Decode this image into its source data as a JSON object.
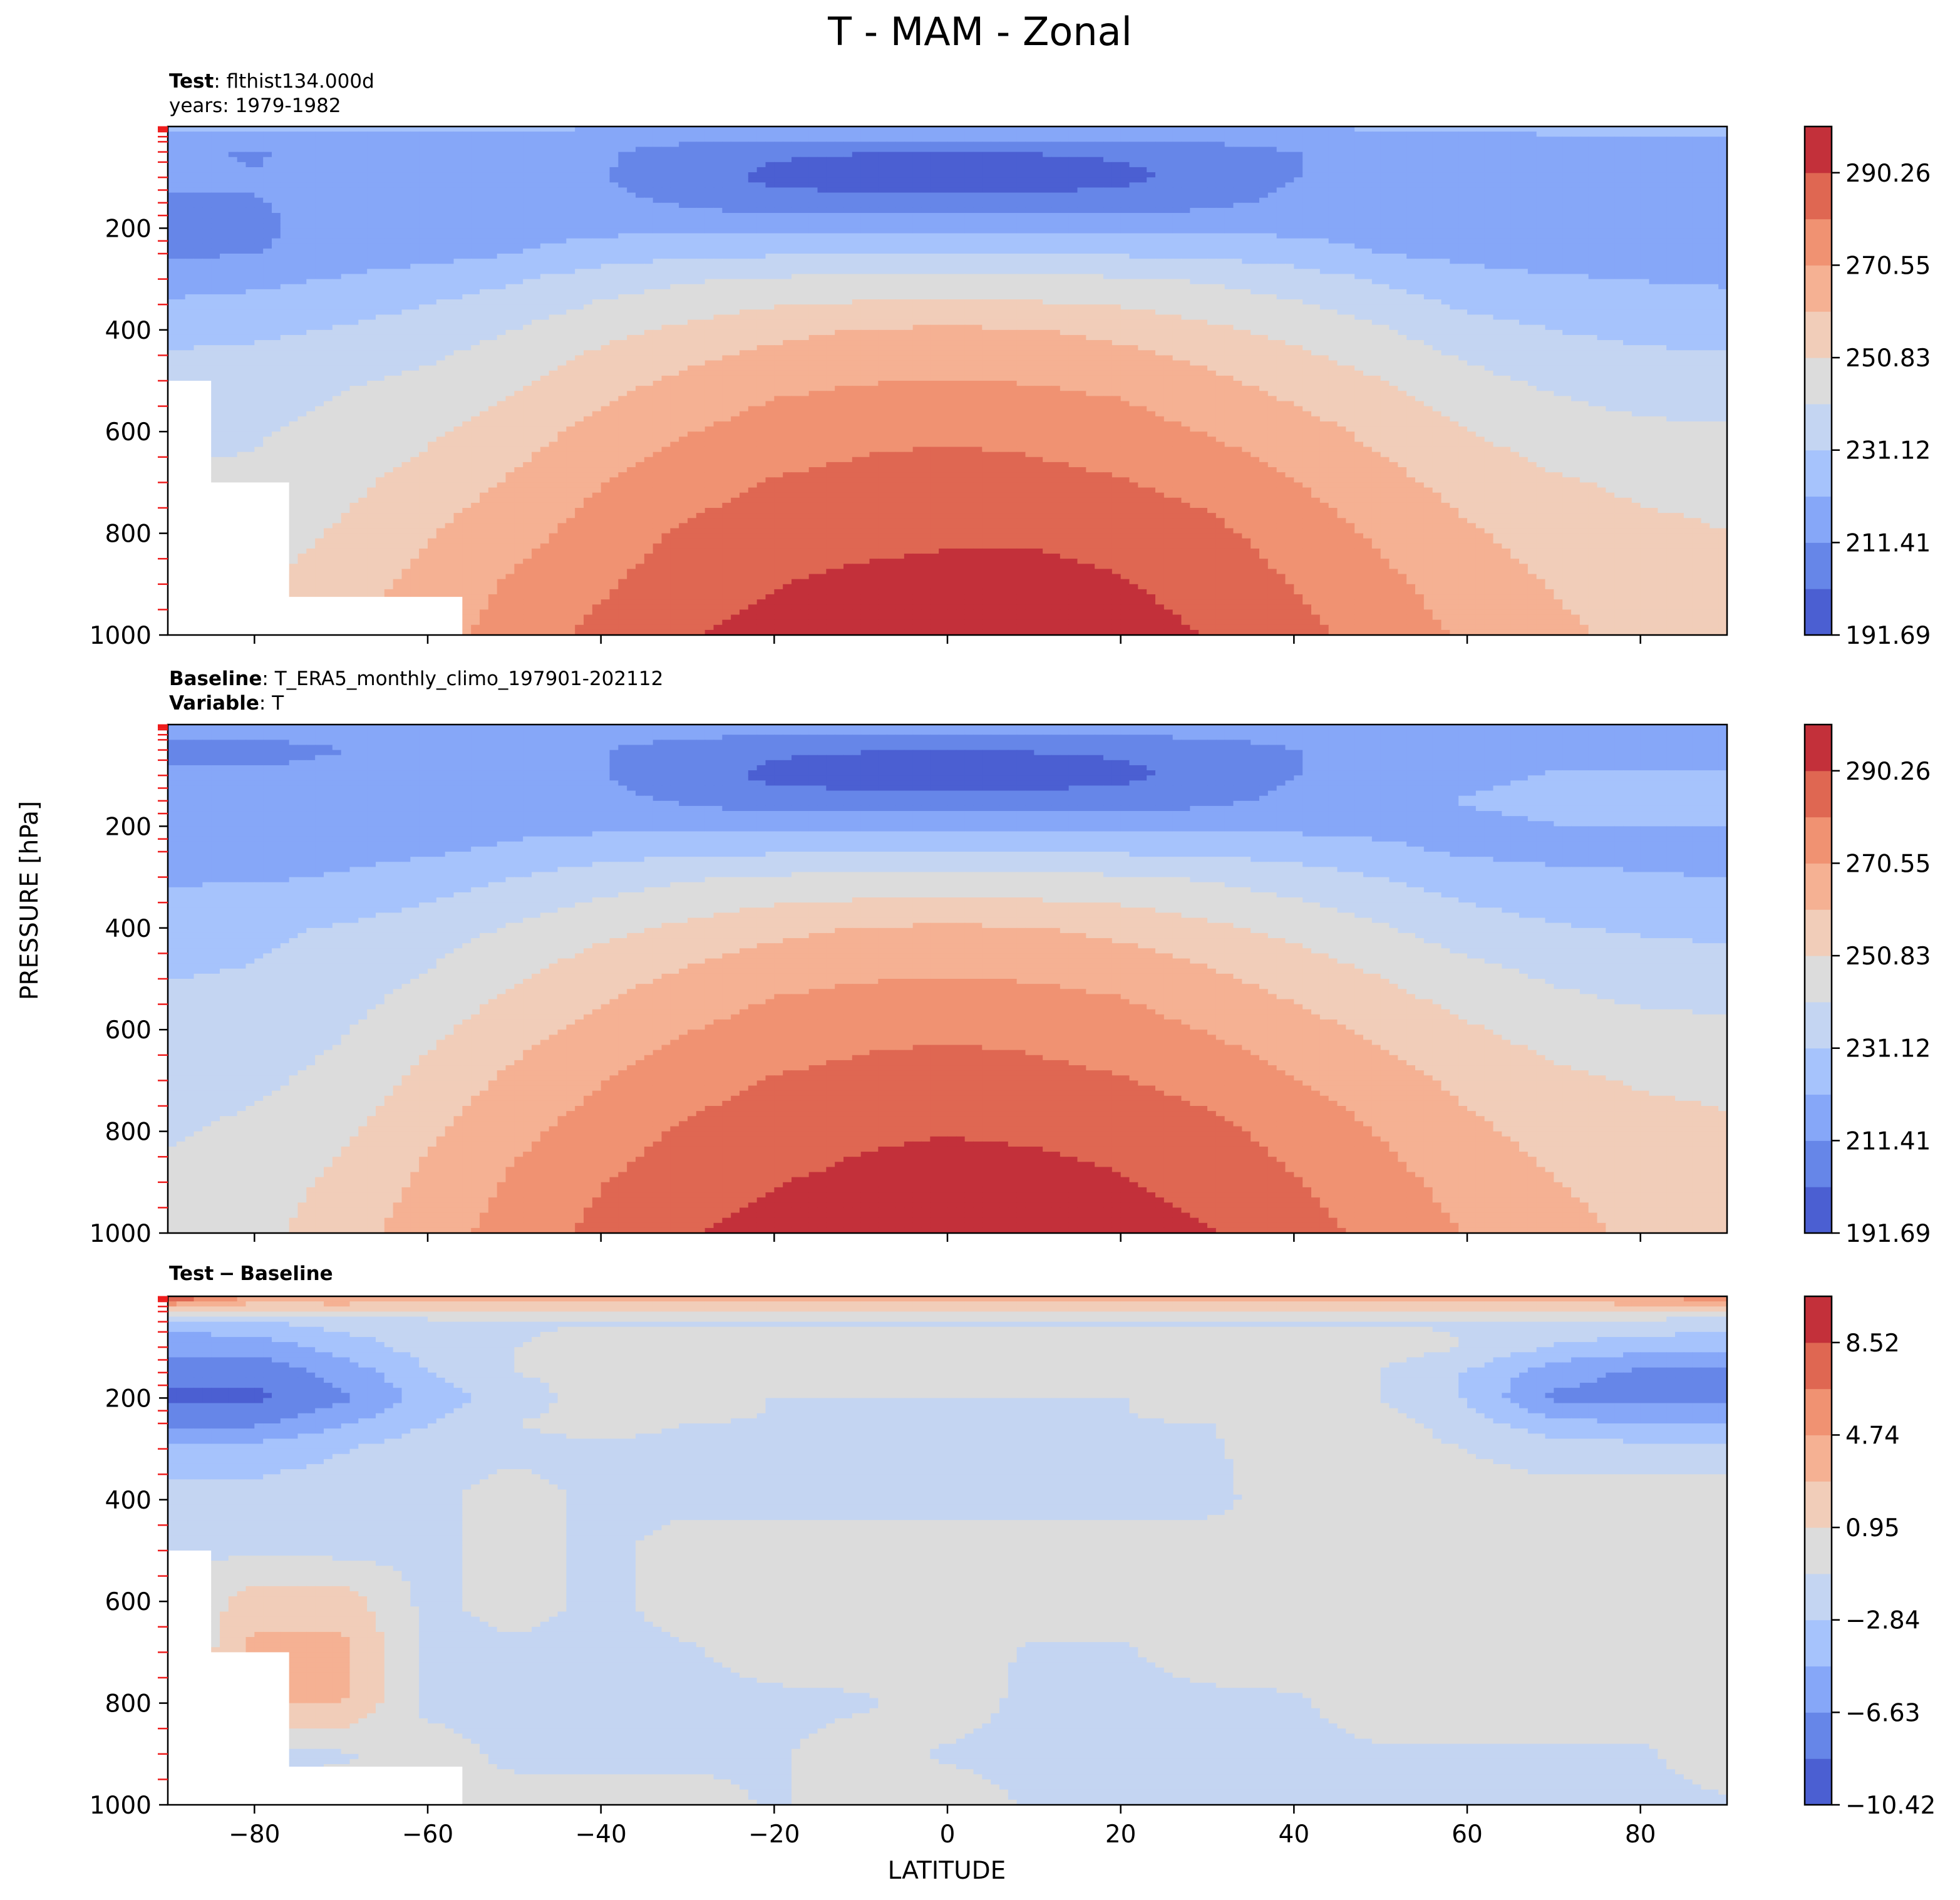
{
  "figure_title": "T - MAM - Zonal",
  "y_axis_label": "PRESSURE [hPa]",
  "x_axis_label": "LATITUDE",
  "colors": {
    "coolwarm": [
      "#4b5fd2",
      "#6686e8",
      "#86a7f8",
      "#a6c3fc",
      "#c4d5f2",
      "#dcdcdc",
      "#f1cdb9",
      "#f5b193",
      "#f09272",
      "#df6752",
      "#c3303a"
    ],
    "tick_marks": "#ee1c1c"
  },
  "panels": [
    {
      "name": "test",
      "title_lines": [
        {
          "label": "Test",
          "sep": ": ",
          "value": "flthist134.000d"
        },
        {
          "label": "",
          "sep": "",
          "value": "years: 1979-1982"
        }
      ],
      "colorbar_ticks": [
        "290.26",
        "270.55",
        "250.83",
        "231.12",
        "211.41",
        "191.69"
      ]
    },
    {
      "name": "baseline",
      "title_lines": [
        {
          "label": "Baseline",
          "sep": ": ",
          "value": "T_ERA5_monthly_climo_197901-202112"
        },
        {
          "label": "Variable",
          "sep": ": ",
          "value": "T"
        }
      ],
      "colorbar_ticks": [
        "290.26",
        "270.55",
        "250.83",
        "231.12",
        "211.41",
        "191.69"
      ]
    },
    {
      "name": "difference",
      "title_lines": [
        {
          "label": "Test",
          "sep": "",
          "value": ""
        }
      ],
      "title_dash": "−",
      "title_second": "Baseline",
      "colorbar_ticks": [
        "8.52",
        "4.74",
        "0.95",
        "−2.84",
        "−6.63",
        "−10.42"
      ]
    }
  ],
  "chart_data": [
    {
      "type": "heatmap",
      "title": "Test: flthist134.000d, years: 1979-1982",
      "xlabel": "LATITUDE",
      "ylabel": "PRESSURE [hPa]",
      "xlim": [
        -90,
        90
      ],
      "ylim": [
        1000,
        0
      ],
      "x_ticks": [
        -80,
        -60,
        -40,
        -20,
        0,
        20,
        40,
        60,
        80
      ],
      "y_ticks": [
        200,
        400,
        600,
        800,
        1000
      ],
      "levels": [
        191.69,
        201.55,
        211.41,
        221.26,
        231.12,
        240.98,
        250.83,
        260.69,
        270.55,
        280.4,
        290.26,
        300.12
      ],
      "colorbar_labels": [
        191.69,
        211.41,
        231.12,
        250.83,
        270.55,
        290.26
      ],
      "colormap": "coolwarm",
      "latitudes": [
        -90,
        -80,
        -70,
        -60,
        -50,
        -40,
        -30,
        -20,
        -10,
        0,
        10,
        20,
        30,
        40,
        50,
        60,
        70,
        80,
        90
      ],
      "pressures": [
        0,
        50,
        100,
        150,
        200,
        250,
        300,
        400,
        500,
        600,
        700,
        800,
        900,
        1000
      ],
      "values": [
        [
          224,
          223,
          223,
          222,
          222,
          222,
          222,
          222,
          222,
          222,
          222,
          222,
          222,
          222,
          222,
          222,
          223,
          223,
          224
        ],
        [
          215,
          210,
          217,
          218,
          218,
          213,
          206,
          203,
          202,
          202,
          202,
          203,
          206,
          211,
          216,
          217,
          218,
          218,
          218
        ],
        [
          213,
          212,
          215,
          217,
          217,
          212,
          206,
          199,
          196,
          196,
          196,
          199,
          205,
          211,
          216,
          217,
          218,
          218,
          218
        ],
        [
          210,
          211,
          214,
          217,
          217,
          214,
          210,
          206,
          205,
          205,
          205,
          206,
          209,
          214,
          216,
          217,
          217,
          217,
          217
        ],
        [
          210,
          210,
          214,
          217,
          218,
          219,
          219,
          218,
          218,
          218,
          218,
          218,
          219,
          219,
          218,
          217,
          217,
          217,
          217
        ],
        [
          210,
          211,
          216,
          218,
          221,
          226,
          229,
          230,
          230,
          230,
          230,
          230,
          229,
          226,
          221,
          219,
          218,
          218,
          218
        ],
        [
          217,
          219,
          222,
          226,
          230,
          236,
          240,
          242,
          243,
          243,
          243,
          242,
          240,
          236,
          230,
          224,
          222,
          221,
          220
        ],
        [
          228,
          229,
          232,
          236,
          241,
          248,
          253,
          258,
          261,
          262,
          261,
          258,
          253,
          248,
          242,
          235,
          231,
          229,
          228
        ],
        [
          236,
          237,
          240,
          243,
          249,
          257,
          263,
          268,
          270,
          271,
          270,
          268,
          263,
          257,
          251,
          244,
          239,
          236,
          235
        ],
        [
          238,
          240,
          244,
          249,
          256,
          264,
          270,
          275,
          278,
          279,
          278,
          275,
          270,
          265,
          258,
          251,
          246,
          243,
          242
        ],
        [
          242,
          243,
          248,
          255,
          262,
          270,
          276,
          281,
          283,
          284,
          283,
          281,
          277,
          271,
          264,
          257,
          252,
          249,
          248
        ],
        [
          245,
          246,
          252,
          260,
          267,
          275,
          282,
          286,
          288,
          289,
          289,
          287,
          283,
          276,
          269,
          262,
          256,
          253,
          251
        ],
        [
          247,
          249,
          256,
          264,
          272,
          279,
          286,
          290,
          292,
          293,
          293,
          291,
          287,
          280,
          273,
          266,
          260,
          256,
          254
        ],
        [
          249,
          251,
          258,
          266,
          275,
          283,
          290,
          293,
          295,
          296,
          296,
          294,
          290,
          284,
          276,
          269,
          263,
          258,
          256
        ]
      ],
      "masked_region": [
        {
          "lat_max": -85,
          "p_min": 500
        },
        {
          "lat_max": -76,
          "p_min": 700
        },
        {
          "lat_max": -56,
          "p_min": 925
        }
      ]
    },
    {
      "type": "heatmap",
      "title": "Baseline: T_ERA5_monthly_climo_197901-202112, Variable: T",
      "xlabel": "LATITUDE",
      "ylabel": "PRESSURE [hPa]",
      "xlim": [
        -90,
        90
      ],
      "ylim": [
        1000,
        0
      ],
      "x_ticks": [
        -80,
        -60,
        -40,
        -20,
        0,
        20,
        40,
        60,
        80
      ],
      "y_ticks": [
        200,
        400,
        600,
        800,
        1000
      ],
      "levels": [
        191.69,
        201.55,
        211.41,
        221.26,
        231.12,
        240.98,
        250.83,
        260.69,
        270.55,
        280.4,
        290.26,
        300.12
      ],
      "colorbar_labels": [
        191.69,
        211.41,
        231.12,
        250.83,
        270.55,
        290.26
      ],
      "colormap": "coolwarm",
      "latitudes": [
        -90,
        -80,
        -70,
        -60,
        -50,
        -40,
        -30,
        -20,
        -10,
        0,
        10,
        20,
        30,
        40,
        50,
        60,
        70,
        80,
        90
      ],
      "pressures": [
        0,
        50,
        100,
        150,
        200,
        250,
        300,
        400,
        500,
        600,
        700,
        800,
        900,
        1000
      ],
      "values": [
        [
          215,
          216,
          218,
          218,
          218,
          218,
          218,
          218,
          218,
          218,
          218,
          218,
          218,
          218,
          218,
          218,
          218,
          218,
          218
        ],
        [
          208,
          208,
          211,
          217,
          218,
          212,
          206,
          203,
          202,
          202,
          202,
          203,
          206,
          211,
          215,
          217,
          218,
          218,
          218
        ],
        [
          213,
          213,
          215,
          217,
          217,
          212,
          206,
          199,
          197,
          197,
          197,
          199,
          205,
          211,
          216,
          219,
          222,
          222,
          222
        ],
        [
          214,
          214,
          216,
          217,
          217,
          214,
          210,
          206,
          205,
          205,
          205,
          206,
          209,
          214,
          217,
          222,
          224,
          224,
          224
        ],
        [
          216,
          216,
          217,
          218,
          219,
          219,
          219,
          218,
          218,
          218,
          218,
          218,
          219,
          219,
          219,
          219,
          221,
          221,
          221
        ],
        [
          217,
          217,
          218,
          220,
          223,
          227,
          229,
          230,
          230,
          230,
          230,
          230,
          229,
          227,
          223,
          220,
          219,
          219,
          219
        ],
        [
          220,
          220,
          222,
          226,
          231,
          236,
          240,
          242,
          243,
          243,
          243,
          242,
          240,
          236,
          231,
          226,
          223,
          222,
          221
        ],
        [
          228,
          229,
          232,
          236,
          242,
          248,
          253,
          258,
          261,
          262,
          261,
          258,
          253,
          248,
          242,
          236,
          232,
          230,
          229
        ],
        [
          231,
          232,
          236,
          242,
          250,
          257,
          263,
          268,
          270,
          271,
          270,
          268,
          263,
          257,
          251,
          245,
          240,
          237,
          236
        ],
        [
          234,
          236,
          240,
          248,
          257,
          264,
          270,
          275,
          278,
          279,
          278,
          275,
          270,
          265,
          258,
          252,
          247,
          244,
          243
        ],
        [
          237,
          239,
          244,
          254,
          263,
          270,
          276,
          281,
          283,
          284,
          283,
          281,
          277,
          271,
          265,
          258,
          253,
          250,
          249
        ],
        [
          240,
          243,
          249,
          259,
          268,
          275,
          282,
          286,
          289,
          290,
          289,
          287,
          283,
          277,
          270,
          263,
          257,
          254,
          252
        ],
        [
          243,
          246,
          253,
          263,
          272,
          280,
          286,
          290,
          292,
          293,
          293,
          291,
          287,
          281,
          274,
          267,
          261,
          257,
          255
        ],
        [
          245,
          248,
          256,
          266,
          275,
          283,
          290,
          293,
          295,
          296,
          296,
          294,
          291,
          285,
          277,
          270,
          264,
          259,
          257
        ]
      ]
    },
    {
      "type": "heatmap",
      "title": "Test − Baseline",
      "xlabel": "LATITUDE",
      "ylabel": "PRESSURE [hPa]",
      "xlim": [
        -90,
        90
      ],
      "ylim": [
        1000,
        0
      ],
      "x_ticks": [
        -80,
        -60,
        -40,
        -20,
        0,
        20,
        40,
        60,
        80
      ],
      "y_ticks": [
        200,
        400,
        600,
        800,
        1000
      ],
      "levels": [
        -10.42,
        -8.52,
        -6.63,
        -4.74,
        -2.84,
        -0.95,
        0.95,
        2.84,
        4.74,
        6.63,
        8.52,
        10.42
      ],
      "colorbar_labels": [
        -10.42,
        -6.63,
        -2.84,
        0.95,
        4.74,
        8.52
      ],
      "colormap": "coolwarm",
      "latitudes": [
        -90,
        -80,
        -70,
        -60,
        -50,
        -40,
        -30,
        -20,
        -10,
        0,
        10,
        20,
        30,
        40,
        50,
        60,
        70,
        80,
        90
      ],
      "pressures": [
        0,
        50,
        100,
        150,
        200,
        250,
        300,
        400,
        500,
        600,
        700,
        800,
        900,
        1000
      ],
      "values": [
        [
          9,
          5,
          5,
          4,
          4,
          4,
          4,
          4,
          4,
          4,
          4,
          4,
          4,
          4,
          4,
          4,
          4,
          5,
          6
        ],
        [
          -4,
          -3,
          -2,
          -1.5,
          -1.2,
          -1.1,
          -1.1,
          -1.1,
          -1.1,
          -1.2,
          -1.2,
          -1.1,
          -1.1,
          -1.1,
          -1.1,
          -1.1,
          -1.2,
          -1.5,
          -2
        ],
        [
          -6,
          -6,
          -4,
          -2,
          -1,
          0,
          0,
          0,
          0,
          0,
          0,
          0,
          0,
          0,
          0,
          -1,
          -3,
          -4,
          -4
        ],
        [
          -8,
          -8,
          -6,
          -3,
          -1,
          0,
          0,
          0,
          0,
          0,
          0,
          0,
          0,
          0,
          -1,
          -3,
          -6,
          -7,
          -7
        ],
        [
          -9,
          -9,
          -7,
          -4,
          -2,
          0,
          0,
          -1,
          -1,
          -1,
          -1,
          -1,
          0,
          0,
          -1,
          -3,
          -7,
          -7,
          -7
        ],
        [
          -7,
          -7,
          -5,
          -3,
          -1,
          0,
          -1,
          -1,
          -1,
          -1,
          -1,
          -1,
          -1,
          0,
          0,
          -2,
          -4,
          -5,
          -5
        ],
        [
          -4,
          -4,
          -3,
          -1.5,
          -1.5,
          -1.5,
          -1.5,
          -1.5,
          -1.5,
          -1.5,
          -1.5,
          -1.5,
          -1.2,
          0,
          0,
          -1,
          -2,
          -2,
          -2
        ],
        [
          -2,
          -2,
          -1.5,
          -1.5,
          0,
          -1.5,
          -1.5,
          -1.5,
          -1.5,
          -1.5,
          -1.5,
          -1.5,
          -1.5,
          0,
          0,
          0,
          0,
          0,
          0
        ],
        [
          -1.5,
          -1.2,
          -1.5,
          -1.5,
          0,
          -1.5,
          0,
          0,
          0,
          0,
          0,
          0,
          0,
          0,
          0,
          0,
          0,
          0,
          0
        ],
        [
          -1.5,
          2,
          2,
          -1.5,
          0,
          -1.5,
          0,
          0,
          0,
          0,
          0,
          0,
          0,
          0,
          0,
          0,
          0,
          0,
          0
        ],
        [
          -2,
          3.5,
          3.5,
          -1.5,
          -1.5,
          -1.5,
          -1.2,
          0,
          0,
          0,
          -1.2,
          -1.2,
          0,
          0,
          0,
          0,
          0,
          0,
          0
        ],
        [
          -2,
          3,
          3,
          -1.5,
          -1.5,
          -1.5,
          -1.5,
          -1.5,
          -1.2,
          0,
          -1.5,
          -1.5,
          -1.5,
          -1.2,
          0,
          0,
          0,
          0,
          0
        ],
        [
          -1.5,
          -1.2,
          -1.2,
          0,
          -1.5,
          -1.5,
          -1.5,
          -1.2,
          0,
          -1.2,
          -1.5,
          -1.2,
          -1.5,
          -1.5,
          -1.2,
          -1.2,
          -1.2,
          -1.2,
          0
        ],
        [
          -1.2,
          -1.2,
          0,
          0,
          0,
          0,
          0,
          -1.2,
          0,
          0,
          -1.2,
          -1.2,
          -1.2,
          -1.2,
          -1.5,
          -1.5,
          -1.5,
          -1.5,
          -1.2
        ]
      ],
      "masked_region": [
        {
          "lat_max": -85,
          "p_min": 500
        },
        {
          "lat_max": -76,
          "p_min": 700
        },
        {
          "lat_max": -56,
          "p_min": 925
        }
      ]
    }
  ]
}
